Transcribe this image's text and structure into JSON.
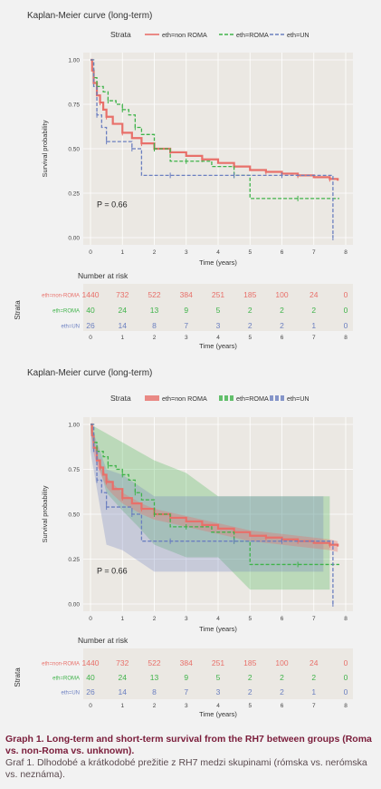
{
  "colors": {
    "nonroma": "#e8706a",
    "roma": "#3fb34a",
    "un": "#6b7fc0",
    "panel": "#ebe8e3",
    "grid": "#ffffff"
  },
  "chart_data": [
    {
      "type": "line",
      "title": "Kaplan-Meier curve (long-term)",
      "legend_title": "Strata",
      "legend_position": "top",
      "xlabel": "Time (years)",
      "ylabel": "Survival probability",
      "xlim": [
        0,
        8
      ],
      "ylim": [
        0,
        1
      ],
      "x_ticks": [
        "0",
        "1",
        "2",
        "3",
        "4",
        "5",
        "6",
        "7",
        "8"
      ],
      "y_ticks": [
        "0.00",
        "0.25",
        "0.50",
        "0.75",
        "1.00"
      ],
      "annotation": "P = 0.66",
      "confidence_bands": false,
      "series": [
        {
          "name": "eth=non ROMA",
          "x": [
            0,
            0.05,
            0.1,
            0.2,
            0.3,
            0.4,
            0.5,
            0.7,
            1,
            1.3,
            1.6,
            2,
            2.5,
            3,
            3.5,
            4,
            4.5,
            5,
            5.5,
            6,
            6.5,
            7,
            7.5,
            7.75
          ],
          "y": [
            1,
            0.94,
            0.87,
            0.8,
            0.76,
            0.72,
            0.68,
            0.64,
            0.59,
            0.56,
            0.53,
            0.5,
            0.48,
            0.46,
            0.44,
            0.42,
            0.4,
            0.38,
            0.37,
            0.36,
            0.35,
            0.34,
            0.33,
            0.32
          ]
        },
        {
          "name": "eth=ROMA",
          "x": [
            0,
            0.1,
            0.2,
            0.4,
            0.55,
            0.8,
            1,
            1.2,
            1.4,
            1.6,
            2,
            2.5,
            3,
            3.8,
            4.5,
            5,
            6.5,
            7.8
          ],
          "y": [
            1,
            0.9,
            0.85,
            0.82,
            0.77,
            0.75,
            0.72,
            0.69,
            0.62,
            0.58,
            0.5,
            0.43,
            0.43,
            0.4,
            0.35,
            0.22,
            0.22,
            0.22
          ]
        },
        {
          "name": "eth=UN",
          "x": [
            0,
            0.1,
            0.2,
            0.35,
            0.5,
            1,
            1.3,
            1.6,
            2.5,
            3.5,
            4.5,
            5,
            6,
            7.4,
            7.6
          ],
          "y": [
            1,
            0.85,
            0.69,
            0.62,
            0.54,
            0.54,
            0.5,
            0.35,
            0.35,
            0.35,
            0.35,
            0.35,
            0.35,
            0.35,
            0.0
          ]
        }
      ]
    },
    {
      "type": "line",
      "title": "Kaplan-Meier curve (long-term)",
      "legend_title": "Strata",
      "legend_position": "top",
      "xlabel": "Time (years)",
      "ylabel": "Survival probability",
      "xlim": [
        0,
        8
      ],
      "ylim": [
        0,
        1
      ],
      "x_ticks": [
        "0",
        "1",
        "2",
        "3",
        "4",
        "5",
        "6",
        "7",
        "8"
      ],
      "y_ticks": [
        "0.00",
        "0.25",
        "0.50",
        "0.75",
        "1.00"
      ],
      "annotation": "P = 0.66",
      "confidence_bands": true,
      "series": [
        {
          "name": "eth=non ROMA",
          "x": [
            0,
            0.05,
            0.1,
            0.2,
            0.3,
            0.4,
            0.5,
            0.7,
            1,
            1.3,
            1.6,
            2,
            2.5,
            3,
            3.5,
            4,
            4.5,
            5,
            5.5,
            6,
            6.5,
            7,
            7.5,
            7.75
          ],
          "y": [
            1,
            0.94,
            0.87,
            0.8,
            0.76,
            0.72,
            0.68,
            0.64,
            0.59,
            0.56,
            0.53,
            0.5,
            0.48,
            0.46,
            0.44,
            0.42,
            0.4,
            0.38,
            0.37,
            0.36,
            0.35,
            0.34,
            0.33,
            0.32
          ]
        },
        {
          "name": "eth=ROMA",
          "x": [
            0,
            0.1,
            0.2,
            0.4,
            0.55,
            0.8,
            1,
            1.2,
            1.4,
            1.6,
            2,
            2.5,
            3,
            3.8,
            4.5,
            5,
            6.5,
            7.8
          ],
          "y": [
            1,
            0.9,
            0.85,
            0.82,
            0.77,
            0.75,
            0.72,
            0.69,
            0.62,
            0.58,
            0.5,
            0.43,
            0.43,
            0.4,
            0.35,
            0.22,
            0.22,
            0.22
          ]
        },
        {
          "name": "eth=UN",
          "x": [
            0,
            0.1,
            0.2,
            0.35,
            0.5,
            1,
            1.3,
            1.6,
            2.5,
            3.5,
            4.5,
            5,
            6,
            7.4,
            7.6
          ],
          "y": [
            1,
            0.85,
            0.69,
            0.62,
            0.54,
            0.54,
            0.5,
            0.35,
            0.35,
            0.35,
            0.35,
            0.35,
            0.35,
            0.35,
            0.0
          ]
        }
      ]
    }
  ],
  "risk_tables": [
    {
      "title": "Number at risk",
      "ylabel": "Strata",
      "xlabel": "Time (years)",
      "x_ticks": [
        "0",
        "1",
        "2",
        "3",
        "4",
        "5",
        "6",
        "7",
        "8"
      ],
      "rows": [
        {
          "label": "eth=non-ROMA",
          "values": [
            "1440",
            "732",
            "522",
            "384",
            "251",
            "185",
            "100",
            "24",
            "0"
          ]
        },
        {
          "label": "eth=ROMA",
          "values": [
            "40",
            "24",
            "13",
            "9",
            "5",
            "2",
            "2",
            "2",
            "0"
          ]
        },
        {
          "label": "eth=UN",
          "values": [
            "26",
            "14",
            "8",
            "7",
            "3",
            "2",
            "2",
            "1",
            "0"
          ]
        }
      ]
    },
    {
      "title": "Number at risk",
      "ylabel": "Strata",
      "xlabel": "Time (years)",
      "x_ticks": [
        "0",
        "1",
        "2",
        "3",
        "4",
        "5",
        "6",
        "7",
        "8"
      ],
      "rows": [
        {
          "label": "eth=non-ROMA",
          "values": [
            "1440",
            "732",
            "522",
            "384",
            "251",
            "185",
            "100",
            "24",
            "0"
          ]
        },
        {
          "label": "eth=ROMA",
          "values": [
            "40",
            "24",
            "13",
            "9",
            "5",
            "2",
            "2",
            "2",
            "0"
          ]
        },
        {
          "label": "eth=UN",
          "values": [
            "26",
            "14",
            "8",
            "7",
            "3",
            "2",
            "2",
            "1",
            "0"
          ]
        }
      ]
    }
  ],
  "caption": {
    "title": "Graph 1. Long-term and short-term survival from the RH7 between groups (Roma vs. non-Roma vs. unknown).",
    "subtitle": "Graf 1. Dlhodobé a krátkodobé prežitie z RH7 medzi skupinami (rómska vs. nerómska vs. neznáma)."
  }
}
